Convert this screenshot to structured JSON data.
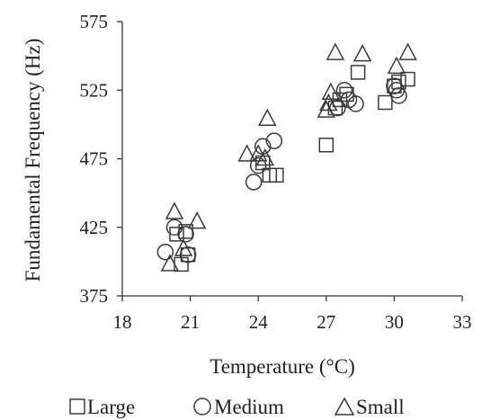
{
  "chart_data": {
    "type": "scatter",
    "title": "",
    "xlabel": "Temperature (°C)",
    "ylabel": "Fundamental Frequency (Hz)",
    "xlim": [
      18,
      33
    ],
    "ylim": [
      375,
      575
    ],
    "xticks": [
      "18",
      "21",
      "24",
      "27",
      "30",
      "33"
    ],
    "yticks": [
      "375",
      "425",
      "475",
      "525",
      "575"
    ],
    "grid": false,
    "legend_placement": "bottom",
    "series": [
      {
        "name": "Large",
        "marker": "square",
        "points": [
          [
            20.4,
            420
          ],
          [
            20.6,
            398
          ],
          [
            20.8,
            422
          ],
          [
            20.9,
            405
          ],
          [
            24.2,
            472
          ],
          [
            24.5,
            463
          ],
          [
            24.8,
            463
          ],
          [
            27.0,
            485
          ],
          [
            27.4,
            512
          ],
          [
            27.6,
            518
          ],
          [
            27.9,
            522
          ],
          [
            28.4,
            538
          ],
          [
            29.6,
            516
          ],
          [
            30.0,
            528
          ],
          [
            30.2,
            531
          ],
          [
            30.6,
            533
          ]
        ]
      },
      {
        "name": "Medium",
        "marker": "circle",
        "points": [
          [
            19.9,
            407
          ],
          [
            20.3,
            425
          ],
          [
            20.8,
            420
          ],
          [
            20.9,
            405
          ],
          [
            23.8,
            458
          ],
          [
            24.0,
            470
          ],
          [
            24.2,
            484
          ],
          [
            24.7,
            488
          ],
          [
            27.5,
            512
          ],
          [
            27.8,
            525
          ],
          [
            28.0,
            518
          ],
          [
            28.3,
            515
          ],
          [
            30.0,
            528
          ],
          [
            30.1,
            525
          ],
          [
            30.2,
            521
          ]
        ]
      },
      {
        "name": "Small",
        "marker": "triangle",
        "points": [
          [
            20.1,
            398
          ],
          [
            20.3,
            436
          ],
          [
            20.7,
            409
          ],
          [
            21.3,
            429
          ],
          [
            23.5,
            478
          ],
          [
            24.0,
            478
          ],
          [
            24.3,
            475
          ],
          [
            24.4,
            504
          ],
          [
            27.0,
            510
          ],
          [
            27.1,
            515
          ],
          [
            27.2,
            523
          ],
          [
            27.4,
            552
          ],
          [
            28.6,
            551
          ],
          [
            30.1,
            542
          ],
          [
            30.6,
            552
          ]
        ]
      }
    ]
  }
}
